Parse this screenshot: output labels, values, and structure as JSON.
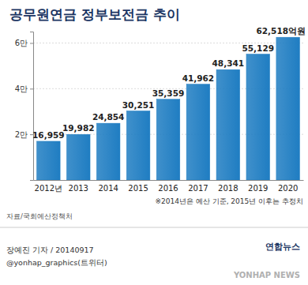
{
  "chart_data": {
    "type": "bar",
    "title": "공무원연금 정부보전금 추이",
    "categories": [
      "2012년",
      "2013",
      "2014",
      "2015",
      "2016",
      "2017",
      "2018",
      "2019",
      "2020"
    ],
    "values": [
      16959,
      19982,
      24854,
      30251,
      35359,
      41962,
      48341,
      55129,
      62518
    ],
    "value_labels": [
      "16,959",
      "19,982",
      "24,854",
      "30,251",
      "35,359",
      "41,962",
      "48,341",
      "55,129",
      "62,518억원"
    ],
    "color": "#1f7dc2",
    "ylim": [
      0,
      65000
    ],
    "yticks": [
      {
        "value": 20000,
        "label": "2만"
      },
      {
        "value": 40000,
        "label": "4만"
      },
      {
        "value": 60000,
        "label": "6만"
      }
    ],
    "grid": true,
    "data_labels": true,
    "annotations": [
      "※2014년은 예산 기준, 2015년 이후는 추정치",
      "자료/국회예산정책처",
      "장예진 기자 / 20140917",
      "@yonhap_graphics(트위터)",
      "연합뉴스",
      "YONHAP NEWS"
    ]
  }
}
